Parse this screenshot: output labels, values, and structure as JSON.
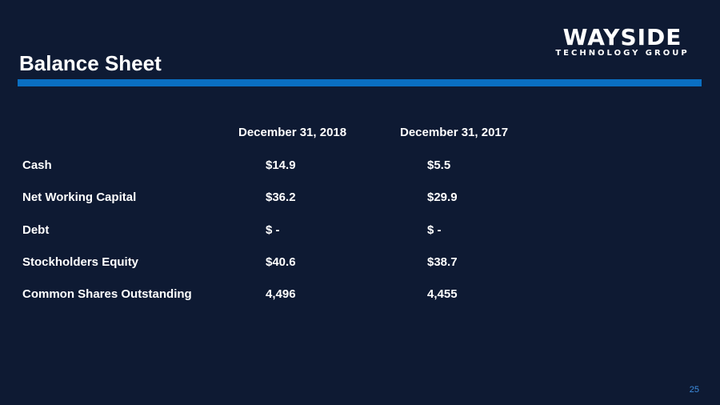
{
  "logo": {
    "main": "WAYSIDE",
    "sub": "TECHNOLOGY GROUP"
  },
  "title": "Balance Sheet",
  "colors": {
    "background": "#0e1a33",
    "accent_rule": "#0a6fc2",
    "page_number": "#3d8de0",
    "text": "#ffffff"
  },
  "table": {
    "headers": [
      "December 31, 2018",
      "December 31, 2017"
    ],
    "rows": [
      {
        "label": "Cash",
        "v2018": "$14.9",
        "v2017": "$5.5"
      },
      {
        "label": "Net Working Capital",
        "v2018": "$36.2",
        "v2017": "$29.9"
      },
      {
        "label": "Debt",
        "v2018": "$ -",
        "v2017": "$ -"
      },
      {
        "label": "Stockholders Equity",
        "v2018": "$40.6",
        "v2017": "$38.7"
      },
      {
        "label": "Common Shares Outstanding",
        "v2018": "4,496",
        "v2017": "4,455"
      }
    ]
  },
  "page_number": "25"
}
